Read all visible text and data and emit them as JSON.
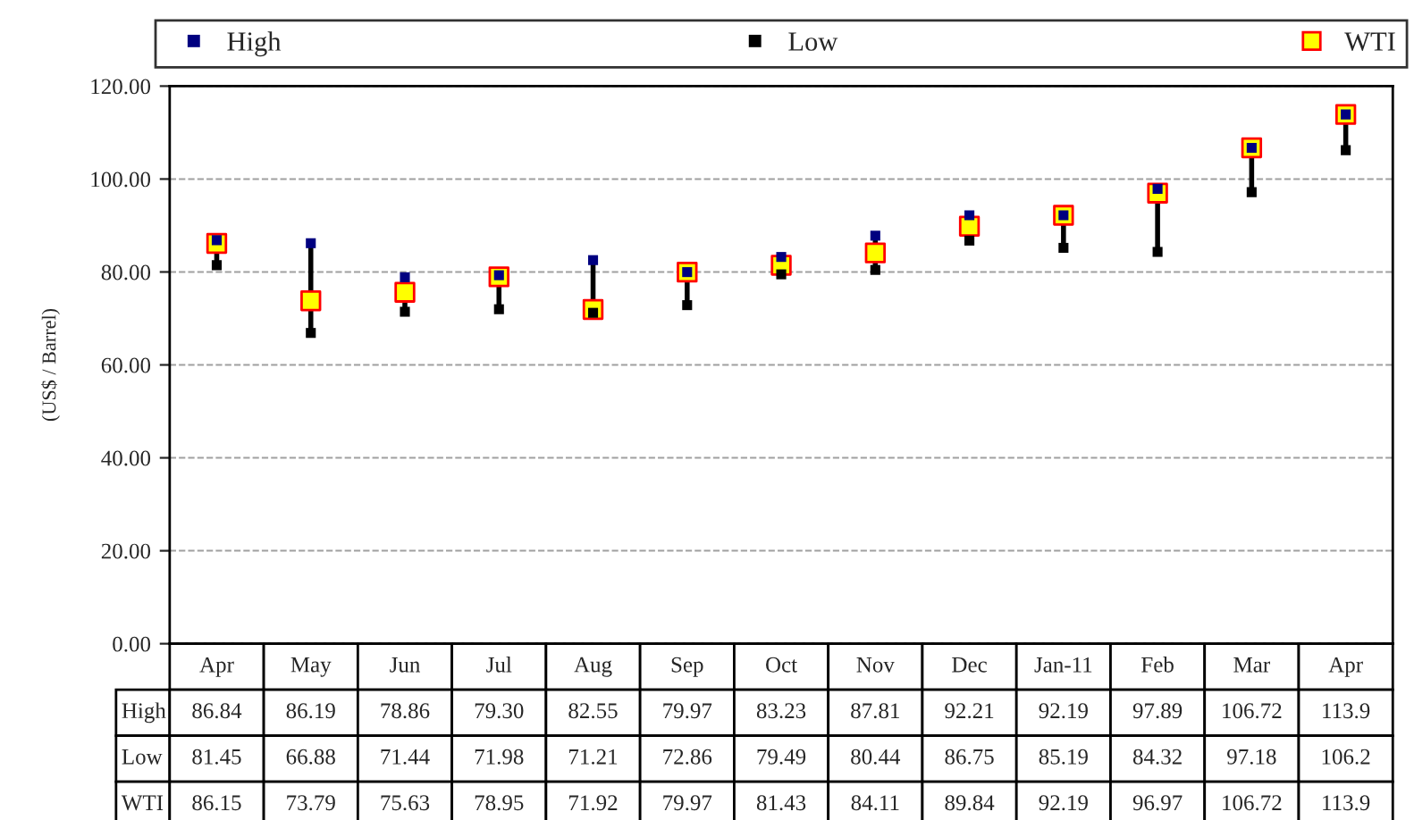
{
  "chart_data": {
    "type": "scatter",
    "ylabel": "(US$ / Barrel)",
    "categories": [
      "Apr",
      "May",
      "Jun",
      "Jul",
      "Aug",
      "Sep",
      "Oct",
      "Nov",
      "Dec",
      "Jan-11",
      "Feb",
      "Mar",
      "Apr"
    ],
    "series": [
      {
        "name": "High",
        "color": "#000080",
        "marker": "square",
        "values": [
          86.84,
          86.19,
          78.86,
          79.3,
          82.55,
          79.97,
          83.23,
          87.81,
          92.21,
          92.19,
          97.89,
          106.72,
          113.9
        ],
        "value_labels": [
          "86.84",
          "86.19",
          "78.86",
          "79.30",
          "82.55",
          "79.97",
          "83.23",
          "87.81",
          "92.21",
          "92.19",
          "97.89",
          "106.72",
          "113.9"
        ]
      },
      {
        "name": "Low",
        "color": "#000000",
        "marker": "square",
        "values": [
          81.45,
          66.88,
          71.44,
          71.98,
          71.21,
          72.86,
          79.49,
          80.44,
          86.75,
          85.19,
          84.32,
          97.18,
          106.2
        ],
        "value_labels": [
          "81.45",
          "66.88",
          "71.44",
          "71.98",
          "71.21",
          "72.86",
          "79.49",
          "80.44",
          "86.75",
          "85.19",
          "84.32",
          "97.18",
          "106.2"
        ]
      },
      {
        "name": "WTI",
        "color": "#ffff00",
        "marker": "square",
        "values": [
          86.15,
          73.79,
          75.63,
          78.95,
          71.92,
          79.97,
          81.43,
          84.11,
          89.84,
          92.19,
          96.97,
          106.72,
          113.9
        ],
        "value_labels": [
          "86.15",
          "73.79",
          "75.63",
          "78.95",
          "71.92",
          "79.97",
          "81.43",
          "84.11",
          "89.84",
          "92.19",
          "96.97",
          "106.72",
          "113.9"
        ]
      }
    ],
    "ylim": [
      0,
      120
    ],
    "yticks": [
      {
        "value": 0,
        "label": "0.00"
      },
      {
        "value": 20,
        "label": "20.00"
      },
      {
        "value": 40,
        "label": "40.00"
      },
      {
        "value": 60,
        "label": "60.00"
      },
      {
        "value": 80,
        "label": "80.00"
      },
      {
        "value": 100,
        "label": "100.00"
      },
      {
        "value": 120,
        "label": "120.00"
      }
    ],
    "grid": "y",
    "legend": "top"
  }
}
